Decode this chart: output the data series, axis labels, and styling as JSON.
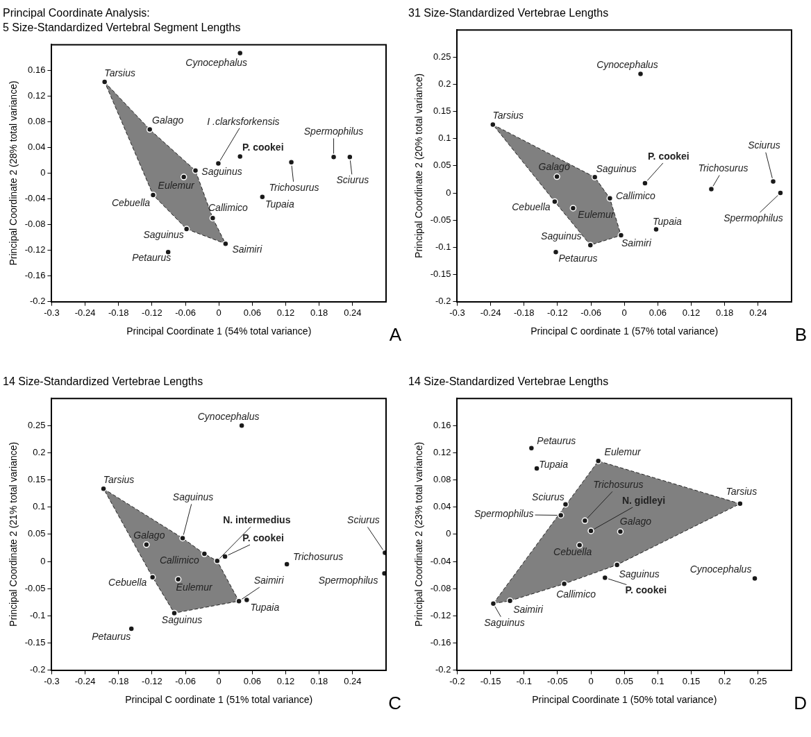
{
  "chart_data": [
    {
      "type": "scatter",
      "title": "Principal Coordinate Analysis:",
      "subtitle": "5 Size-Standardized Vertebral Segment Lengths",
      "xlabel": "Principal Coordinate 1 (54% total variance)",
      "ylabel": "Principal Coordinate 2 (28% total variance)",
      "xlim": [
        -0.3,
        0.3
      ],
      "ylim": [
        -0.2,
        0.2
      ],
      "xticks": [
        -0.3,
        -0.24,
        -0.18,
        -0.12,
        -0.06,
        0,
        0.06,
        0.12,
        0.18,
        0.24
      ],
      "yticks": [
        -0.2,
        -0.16,
        -0.12,
        -0.08,
        -0.04,
        0,
        0.04,
        0.08,
        0.12,
        0.16
      ],
      "marker": "circle",
      "series": [
        {
          "color": "#1a1a1a",
          "x": [
            0.038,
            -0.205,
            -0.124,
            -0.001,
            0.038,
            -0.042,
            -0.063,
            0.13,
            0.206,
            0.235,
            0.078,
            -0.118,
            -0.011,
            -0.058,
            0.012,
            -0.091
          ],
          "values": [
            0.187,
            0.142,
            0.068,
            0.015,
            0.026,
            0.004,
            -0.006,
            0.017,
            0.025,
            0.025,
            -0.037,
            -0.034,
            -0.07,
            -0.087,
            -0.11,
            -0.123
          ]
        },
        {
          "type": "area",
          "color": "#808080",
          "line_style": "dashed",
          "marker": "none",
          "x": [
            -0.205,
            -0.124,
            -0.042,
            -0.011,
            0.012,
            -0.058,
            -0.118,
            -0.205
          ],
          "values": [
            0.142,
            0.068,
            0.004,
            -0.07,
            -0.11,
            -0.087,
            -0.034,
            0.142
          ]
        }
      ],
      "annotations": [
        {
          "text": "Cynocephalus",
          "x": 0.038,
          "y": 0.187
        },
        {
          "text": "Tarsius",
          "x": -0.205,
          "y": 0.142
        },
        {
          "text": "Galago",
          "x": -0.124,
          "y": 0.068
        },
        {
          "text": "I .clarksforkensis",
          "x": -0.001,
          "y": 0.015
        },
        {
          "text": "P. cookei",
          "x": 0.038,
          "y": 0.026
        },
        {
          "text": "Saguinus",
          "x": -0.042,
          "y": 0.004
        },
        {
          "text": "Eulemur",
          "x": -0.063,
          "y": -0.006
        },
        {
          "text": "Trichosurus",
          "x": 0.13,
          "y": 0.017
        },
        {
          "text": "Spermophilus",
          "x": 0.206,
          "y": 0.025
        },
        {
          "text": "Sciurus",
          "x": 0.235,
          "y": 0.025
        },
        {
          "text": "Tupaia",
          "x": 0.078,
          "y": -0.037
        },
        {
          "text": "Cebuella",
          "x": -0.118,
          "y": -0.034
        },
        {
          "text": "Callimico",
          "x": -0.011,
          "y": -0.07
        },
        {
          "text": "Saguinus",
          "x": -0.058,
          "y": -0.087
        },
        {
          "text": "Saimiri",
          "x": 0.012,
          "y": -0.11
        },
        {
          "text": "Petaurus",
          "x": -0.091,
          "y": -0.123
        },
        "A"
      ]
    },
    {
      "type": "scatter",
      "title": "31 Size-Standardized Vertebrae Lengths",
      "xlabel": "Principal C oordinate 1 (57% total variance)",
      "ylabel": "Principal Coordinate 2 (20% total variance)",
      "xlim": [
        -0.3,
        0.3
      ],
      "ylim": [
        -0.2,
        0.3
      ],
      "xticks": [
        -0.3,
        -0.24,
        -0.18,
        -0.12,
        -0.06,
        0,
        0.06,
        0.12,
        0.18,
        0.24
      ],
      "yticks": [
        -0.2,
        -0.15,
        -0.1,
        -0.05,
        0,
        0.05,
        0.1,
        0.15,
        0.2,
        0.25
      ],
      "marker": "circle",
      "series": [
        {
          "color": "#1a1a1a",
          "x": [
            0.029,
            -0.236,
            -0.121,
            -0.053,
            0.037,
            -0.026,
            -0.125,
            -0.092,
            0.156,
            0.267,
            0.28,
            0.057,
            -0.006,
            -0.061,
            -0.123
          ],
          "values": [
            0.219,
            0.126,
            0.03,
            0.029,
            0.018,
            -0.01,
            -0.016,
            -0.028,
            0.007,
            0.021,
            0,
            -0.067,
            -0.078,
            -0.096,
            -0.109
          ]
        },
        {
          "type": "area",
          "color": "#808080",
          "line_style": "dashed",
          "marker": "none",
          "x": [
            -0.236,
            -0.053,
            -0.026,
            -0.006,
            -0.061,
            -0.125,
            -0.236
          ],
          "values": [
            0.126,
            0.029,
            -0.01,
            -0.078,
            -0.096,
            -0.016,
            0.126
          ]
        }
      ],
      "annotations": [
        {
          "text": "Cynocephalus",
          "x": 0.029,
          "y": 0.219
        },
        {
          "text": "Tarsius",
          "x": -0.236,
          "y": 0.126
        },
        {
          "text": "Galago",
          "x": -0.121,
          "y": 0.03
        },
        {
          "text": "Saguinus",
          "x": -0.053,
          "y": 0.029
        },
        {
          "text": "P. cookei",
          "x": 0.037,
          "y": 0.018
        },
        {
          "text": "Callimico",
          "x": -0.026,
          "y": -0.01
        },
        {
          "text": "Cebuella",
          "x": -0.125,
          "y": -0.016
        },
        {
          "text": "Eulemur",
          "x": -0.092,
          "y": -0.028
        },
        {
          "text": "Trichosurus",
          "x": 0.156,
          "y": 0.007
        },
        {
          "text": "Sciurus",
          "x": 0.267,
          "y": 0.021
        },
        {
          "text": "Spermophilus",
          "x": 0.28,
          "y": 0
        },
        {
          "text": "Tupaia",
          "x": 0.057,
          "y": -0.067
        },
        {
          "text": "Saimiri",
          "x": -0.006,
          "y": -0.078
        },
        {
          "text": "Saguinus",
          "x": -0.061,
          "y": -0.096
        },
        {
          "text": "Petaurus",
          "x": -0.123,
          "y": -0.109
        },
        "B"
      ]
    },
    {
      "type": "scatter",
      "title": "14 Size-Standardized Vertebrae Lengths",
      "xlabel": "Principal C oordinate 1 (51% total variance)",
      "ylabel": "Principal Coordinate 2 (21% total variance)",
      "xlim": [
        -0.3,
        0.3
      ],
      "ylim": [
        -0.2,
        0.3
      ],
      "xticks": [
        -0.3,
        -0.24,
        -0.18,
        -0.12,
        -0.06,
        0,
        0.06,
        0.12,
        0.18,
        0.24
      ],
      "yticks": [
        -0.2,
        -0.15,
        -0.1,
        -0.05,
        0,
        0.05,
        0.1,
        0.15,
        0.2,
        0.25
      ],
      "marker": "circle",
      "series": [
        {
          "color": "#1a1a1a",
          "x": [
            0.041,
            -0.207,
            -0.065,
            -0.13,
            -0.026,
            -0.003,
            0.011,
            0.122,
            0.298,
            0.297,
            -0.119,
            -0.073,
            0.036,
            0.05,
            -0.08,
            -0.157
          ],
          "values": [
            0.25,
            0.134,
            0.043,
            0.031,
            0.014,
            0.001,
            0.009,
            -0.005,
            0.016,
            -0.022,
            -0.029,
            -0.033,
            -0.073,
            -0.071,
            -0.095,
            -0.124
          ]
        },
        {
          "type": "area",
          "color": "#808080",
          "line_style": "dashed",
          "marker": "none",
          "x": [
            -0.207,
            -0.065,
            -0.026,
            -0.003,
            0.036,
            -0.08,
            -0.119,
            -0.207
          ],
          "values": [
            0.134,
            0.043,
            0.014,
            0.001,
            -0.073,
            -0.095,
            -0.029,
            0.134
          ]
        }
      ],
      "annotations": [
        {
          "text": "Cynocephalus",
          "x": 0.041,
          "y": 0.25
        },
        {
          "text": "Tarsius",
          "x": -0.207,
          "y": 0.134
        },
        {
          "text": "Saguinus",
          "x": -0.065,
          "y": 0.043
        },
        {
          "text": "Galago",
          "x": -0.13,
          "y": 0.031
        },
        {
          "text": "Callimico",
          "x": -0.026,
          "y": 0.014
        },
        {
          "text": "N. intermedius",
          "x": -0.003,
          "y": 0.001
        },
        {
          "text": "P. cookei",
          "x": 0.011,
          "y": 0.009
        },
        {
          "text": "Trichosurus",
          "x": 0.122,
          "y": -0.005
        },
        {
          "text": "Sciurus",
          "x": 0.298,
          "y": 0.016
        },
        {
          "text": "Spermophilus",
          "x": 0.297,
          "y": -0.022
        },
        {
          "text": "Cebuella",
          "x": -0.119,
          "y": -0.029
        },
        {
          "text": "Eulemur",
          "x": -0.073,
          "y": -0.033
        },
        {
          "text": "Saimiri",
          "x": 0.036,
          "y": -0.073
        },
        {
          "text": "Tupaia",
          "x": 0.05,
          "y": -0.071
        },
        {
          "text": "Saguinus",
          "x": -0.08,
          "y": -0.095
        },
        {
          "text": "Petaurus",
          "x": -0.157,
          "y": -0.124
        },
        "C"
      ]
    },
    {
      "type": "scatter",
      "title": "14 Size-Standardized Vertebrae Lengths",
      "xlabel": "Principal Coordinate 1 (50% total variance)",
      "ylabel": "Principal Coordinate 2 (23% total variance)",
      "xlim": [
        -0.2,
        0.3
      ],
      "ylim": [
        -0.2,
        0.2
      ],
      "xticks": [
        -0.2,
        -0.15,
        -0.1,
        -0.05,
        0,
        0.05,
        0.1,
        0.15,
        0.2,
        0.25
      ],
      "yticks": [
        -0.2,
        -0.16,
        -0.12,
        -0.08,
        -0.04,
        0,
        0.04,
        0.08,
        0.12,
        0.16
      ],
      "marker": "circle",
      "series": [
        {
          "color": "#1a1a1a",
          "x": [
            -0.089,
            0.011,
            -0.081,
            0.223,
            -0.038,
            -0.045,
            -0.009,
            0,
            0.044,
            -0.017,
            0.039,
            0.245,
            0.021,
            -0.04,
            -0.121,
            -0.146
          ],
          "values": [
            0.127,
            0.108,
            0.097,
            0.045,
            0.044,
            0.028,
            0.02,
            0.005,
            0.004,
            -0.016,
            -0.045,
            -0.065,
            -0.064,
            -0.073,
            -0.098,
            -0.102
          ]
        },
        {
          "type": "area",
          "color": "#808080",
          "line_style": "dashed",
          "marker": "none",
          "x": [
            -0.146,
            0.011,
            0.223,
            0.039,
            -0.04,
            -0.121,
            -0.146
          ],
          "values": [
            -0.102,
            0.108,
            0.045,
            -0.045,
            -0.073,
            -0.098,
            -0.102
          ]
        }
      ],
      "annotations": [
        {
          "text": "Petaurus",
          "x": -0.089,
          "y": 0.127
        },
        {
          "text": "Eulemur",
          "x": 0.011,
          "y": 0.108
        },
        {
          "text": "Tupaia",
          "x": -0.081,
          "y": 0.097
        },
        {
          "text": "Tarsius",
          "x": 0.223,
          "y": 0.045
        },
        {
          "text": "Sciurus",
          "x": -0.038,
          "y": 0.044
        },
        {
          "text": "Spermophilus",
          "x": -0.045,
          "y": 0.028
        },
        {
          "text": "Trichosurus",
          "x": -0.009,
          "y": 0.02
        },
        {
          "text": "N. gidleyi",
          "x": 0,
          "y": 0.005
        },
        {
          "text": "Galago",
          "x": 0.044,
          "y": 0.004
        },
        {
          "text": "Cebuella",
          "x": -0.017,
          "y": -0.016
        },
        {
          "text": "Saguinus",
          "x": 0.039,
          "y": -0.045
        },
        {
          "text": "Cynocephalus",
          "x": 0.245,
          "y": -0.065
        },
        {
          "text": "P. cookei",
          "x": 0.021,
          "y": -0.064
        },
        {
          "text": "Callimico",
          "x": -0.04,
          "y": -0.073
        },
        {
          "text": "Saimiri",
          "x": -0.121,
          "y": -0.098
        },
        {
          "text": "Saguinus",
          "x": -0.146,
          "y": -0.102
        },
        "D"
      ]
    }
  ]
}
